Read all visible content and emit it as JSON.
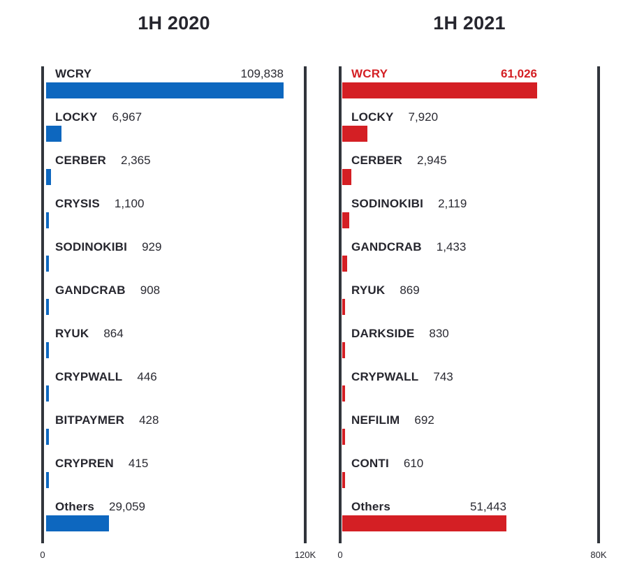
{
  "colors": {
    "bar_blue": "#0d67bf",
    "bar_red": "#d41f24",
    "highlight_red": "#d41f24",
    "text_dark": "#26262e",
    "axis_dark": "#31353c",
    "background": "#ffffff"
  },
  "chart_data": [
    {
      "type": "bar",
      "orientation": "horizontal",
      "title": "1H 2020",
      "bar_color": "#0d67bf",
      "legend": "none",
      "grid": false,
      "axis": {
        "min": 0,
        "max": 120000,
        "min_label": "0",
        "max_label": "120K"
      },
      "categories": [
        "WCRY",
        "LOCKY",
        "CERBER",
        "CRYSIS",
        "SODINOKIBI",
        "GANDCRAB",
        "RYUK",
        "CRYPWALL",
        "BITPAYMER",
        "CRYPREN",
        "Others"
      ],
      "values": [
        109838,
        6967,
        2365,
        1100,
        929,
        908,
        864,
        446,
        428,
        415,
        29059
      ],
      "rows": [
        {
          "label": "WCRY",
          "value": 109838,
          "value_text": "109,838",
          "value_at_bar_end": true,
          "highlight": false
        },
        {
          "label": "LOCKY",
          "value": 6967,
          "value_text": "6,967",
          "value_at_bar_end": false,
          "highlight": false
        },
        {
          "label": "CERBER",
          "value": 2365,
          "value_text": "2,365",
          "value_at_bar_end": false,
          "highlight": false
        },
        {
          "label": "CRYSIS",
          "value": 1100,
          "value_text": "1,100",
          "value_at_bar_end": false,
          "highlight": false
        },
        {
          "label": "SODINOKIBI",
          "value": 929,
          "value_text": "929",
          "value_at_bar_end": false,
          "highlight": false
        },
        {
          "label": "GANDCRAB",
          "value": 908,
          "value_text": "908",
          "value_at_bar_end": false,
          "highlight": false
        },
        {
          "label": "RYUK",
          "value": 864,
          "value_text": "864",
          "value_at_bar_end": false,
          "highlight": false
        },
        {
          "label": "CRYPWALL",
          "value": 446,
          "value_text": "446",
          "value_at_bar_end": false,
          "highlight": false
        },
        {
          "label": "BITPAYMER",
          "value": 428,
          "value_text": "428",
          "value_at_bar_end": false,
          "highlight": false
        },
        {
          "label": "CRYPREN",
          "value": 415,
          "value_text": "415",
          "value_at_bar_end": false,
          "highlight": false
        },
        {
          "label": "Others",
          "value": 29059,
          "value_text": "29,059",
          "value_at_bar_end": false,
          "highlight": false
        }
      ]
    },
    {
      "type": "bar",
      "orientation": "horizontal",
      "title": "1H 2021",
      "bar_color": "#d41f24",
      "legend": "none",
      "grid": false,
      "axis": {
        "min": 0,
        "max": 80000,
        "min_label": "0",
        "max_label": "80K"
      },
      "categories": [
        "WCRY",
        "LOCKY",
        "CERBER",
        "SODINOKIBI",
        "GANDCRAB",
        "RYUK",
        "DARKSIDE",
        "CRYPWALL",
        "NEFILIM",
        "CONTI",
        "Others"
      ],
      "values": [
        61026,
        7920,
        2945,
        2119,
        1433,
        869,
        830,
        743,
        692,
        610,
        51443
      ],
      "rows": [
        {
          "label": "WCRY",
          "value": 61026,
          "value_text": "61,026",
          "value_at_bar_end": true,
          "highlight": true
        },
        {
          "label": "LOCKY",
          "value": 7920,
          "value_text": "7,920",
          "value_at_bar_end": false,
          "highlight": false
        },
        {
          "label": "CERBER",
          "value": 2945,
          "value_text": "2,945",
          "value_at_bar_end": false,
          "highlight": false
        },
        {
          "label": "SODINOKIBI",
          "value": 2119,
          "value_text": "2,119",
          "value_at_bar_end": false,
          "highlight": false
        },
        {
          "label": "GANDCRAB",
          "value": 1433,
          "value_text": "1,433",
          "value_at_bar_end": false,
          "highlight": false
        },
        {
          "label": "RYUK",
          "value": 869,
          "value_text": "869",
          "value_at_bar_end": false,
          "highlight": false
        },
        {
          "label": "DARKSIDE",
          "value": 830,
          "value_text": "830",
          "value_at_bar_end": false,
          "highlight": false
        },
        {
          "label": "CRYPWALL",
          "value": 743,
          "value_text": "743",
          "value_at_bar_end": false,
          "highlight": false
        },
        {
          "label": "NEFILIM",
          "value": 692,
          "value_text": "692",
          "value_at_bar_end": false,
          "highlight": false
        },
        {
          "label": "CONTI",
          "value": 610,
          "value_text": "610",
          "value_at_bar_end": false,
          "highlight": false
        },
        {
          "label": "Others",
          "value": 51443,
          "value_text": "51,443",
          "value_at_bar_end": true,
          "highlight": false
        }
      ]
    }
  ]
}
